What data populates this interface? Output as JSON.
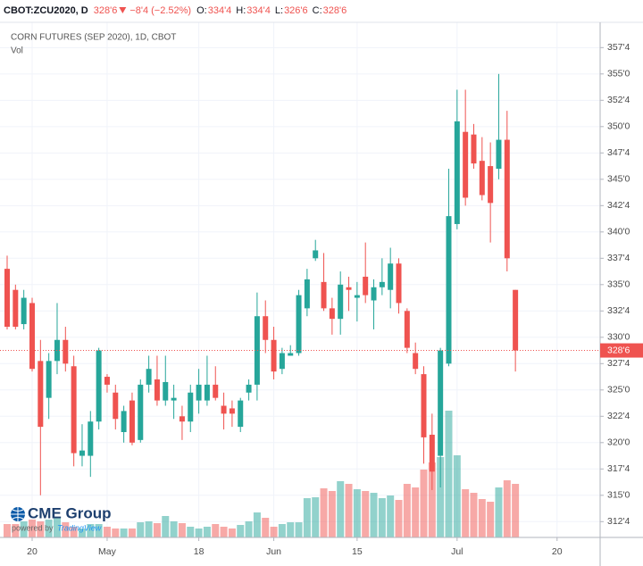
{
  "header": {
    "symbol": "CBOT:ZCU2020, D",
    "last": "328'6",
    "change": "−8'4 (−2.52%)",
    "ohlc": [
      {
        "label": "O:",
        "value": "334'4"
      },
      {
        "label": "H:",
        "value": "334'4"
      },
      {
        "label": "L:",
        "value": "326'6"
      },
      {
        "label": "C:",
        "value": "328'6"
      }
    ]
  },
  "branding": {
    "logo": "CME Group",
    "powered_by": "powered by",
    "platform": "TradingView"
  },
  "chart_data": {
    "type": "candlestick",
    "title": "CORN FUTURES (SEP 2020), 1D, CBOT",
    "volume_label": "Vol",
    "categories": [
      null,
      null,
      null,
      "20",
      null,
      null,
      null,
      null,
      null,
      null,
      null,
      null,
      "May",
      null,
      null,
      null,
      null,
      null,
      null,
      null,
      null,
      null,
      null,
      "18",
      null,
      null,
      null,
      null,
      null,
      null,
      null,
      null,
      "Jun",
      null,
      null,
      null,
      null,
      null,
      null,
      null,
      null,
      null,
      "15",
      null,
      null,
      null,
      null,
      null,
      null,
      null,
      null,
      null,
      null,
      null,
      "Jul",
      null,
      null,
      null,
      null,
      null,
      null,
      null,
      null,
      null,
      null,
      null,
      "20",
      null,
      null,
      null,
      null
    ],
    "open": [
      336.5,
      334.5,
      331.25,
      333.25,
      327.75,
      324.25,
      327.75,
      329.75,
      327.25,
      318.75,
      318.75,
      322,
      326.25,
      324.75,
      321,
      324,
      320.25,
      325.5,
      326,
      324,
      324,
      322.5,
      322,
      324,
      324,
      325.5,
      323.5,
      323.25,
      321.5,
      324.75,
      325.5,
      332,
      329.75,
      327,
      328.25,
      328.5,
      332.75,
      337.5,
      335.25,
      332.75,
      331.75,
      334.75,
      333.75,
      335.75,
      333.5,
      334.75,
      334.5,
      337,
      332.5,
      328.5,
      326.5,
      320.75,
      318.75,
      327.5,
      340.75,
      349.5,
      349.25,
      346.75,
      346.25,
      346,
      348.75,
      334.5,
      null,
      null,
      null,
      null,
      null,
      null,
      null,
      null,
      null
    ],
    "high": [
      337.75,
      335,
      334.5,
      333.75,
      329.75,
      328.5,
      333.25,
      331,
      328.25,
      321.75,
      323,
      329,
      326.5,
      325.5,
      323.5,
      324.75,
      326,
      328.25,
      328.25,
      328.25,
      325.5,
      323.5,
      325.5,
      327,
      328.25,
      327.25,
      324.75,
      324,
      324.25,
      326,
      334.25,
      333.5,
      331,
      329,
      329.25,
      334.5,
      336.5,
      339.25,
      338,
      333.75,
      336.25,
      335.75,
      335.25,
      339,
      335.5,
      337.5,
      338.5,
      337.5,
      332.75,
      329.5,
      327.25,
      322.75,
      329,
      346,
      353.5,
      353.5,
      350.25,
      349,
      348.5,
      355,
      351.5,
      334.5,
      null,
      null,
      null,
      null,
      null,
      null,
      null,
      null,
      null
    ],
    "low": [
      330.75,
      330.75,
      330.75,
      326.75,
      315,
      322.25,
      326.5,
      326.75,
      317.75,
      317.75,
      316.75,
      321.25,
      324.75,
      321.25,
      320,
      319.75,
      320,
      324.75,
      323.5,
      323.5,
      322.25,
      320.25,
      321,
      322.75,
      323.5,
      324,
      321.25,
      321.5,
      321,
      324,
      324,
      328.5,
      326,
      326.5,
      328.25,
      328.25,
      332,
      337.25,
      332.5,
      330.25,
      330.25,
      332.5,
      331.5,
      333.25,
      330.75,
      334,
      332.75,
      332.25,
      328.5,
      326.5,
      318,
      315.5,
      315.75,
      327.25,
      340.25,
      342.5,
      346,
      343,
      339,
      345,
      336.25,
      326.75,
      null,
      null,
      null,
      null,
      null,
      null,
      null,
      null,
      null
    ],
    "close": [
      331,
      331,
      333.75,
      327,
      321.5,
      327.75,
      329.75,
      327.5,
      319,
      319.25,
      322,
      328.75,
      325.5,
      322.25,
      323,
      320,
      325.5,
      327,
      324,
      325.75,
      324.25,
      322,
      324.75,
      325.5,
      325.5,
      324.25,
      322.75,
      322.75,
      324,
      325.5,
      332,
      329.75,
      326.75,
      328.5,
      328.5,
      334,
      335.5,
      338.25,
      332.75,
      331.75,
      335,
      334.5,
      334,
      334,
      334.75,
      335.25,
      337,
      333.25,
      329,
      327,
      320.5,
      317.25,
      328.75,
      341.5,
      350.5,
      343.25,
      346.5,
      343.5,
      342.75,
      348.75,
      337.5,
      328.75,
      null,
      null,
      null,
      null,
      null,
      null,
      null,
      null,
      null
    ],
    "volume": [
      15,
      15,
      18,
      20,
      18,
      20,
      22,
      17,
      12,
      10,
      15,
      15,
      12,
      10,
      10,
      10,
      17,
      18,
      16,
      24,
      18,
      16,
      12,
      10,
      12,
      15,
      12,
      10,
      14,
      18,
      28,
      22,
      12,
      15,
      17,
      17,
      44,
      45,
      55,
      52,
      63,
      60,
      54,
      52,
      50,
      44,
      47,
      42,
      60,
      56,
      76,
      84,
      90,
      142,
      92,
      54,
      50,
      43,
      40,
      56,
      64,
      60,
      null,
      null,
      null,
      null,
      null,
      null,
      null,
      null,
      null
    ],
    "ylim": [
      311.0,
      359.9
    ],
    "yticks": [
      {
        "value": 312.5,
        "label": "312'4"
      },
      {
        "value": 315,
        "label": "315'0"
      },
      {
        "value": 317.5,
        "label": "317'4"
      },
      {
        "value": 320,
        "label": "320'0"
      },
      {
        "value": 322.5,
        "label": "322'4"
      },
      {
        "value": 325,
        "label": "325'0"
      },
      {
        "value": 327.5,
        "label": "327'4"
      },
      {
        "value": 330,
        "label": "330'0"
      },
      {
        "value": 332.5,
        "label": "332'4"
      },
      {
        "value": 335,
        "label": "335'0"
      },
      {
        "value": 337.5,
        "label": "337'4"
      },
      {
        "value": 340,
        "label": "340'0"
      },
      {
        "value": 342.5,
        "label": "342'4"
      },
      {
        "value": 345,
        "label": "345'0"
      },
      {
        "value": 347.5,
        "label": "347'4"
      },
      {
        "value": 350,
        "label": "350'0"
      },
      {
        "value": 352.5,
        "label": "352'4"
      },
      {
        "value": 355,
        "label": "355'0"
      },
      {
        "value": 357.5,
        "label": "357'4"
      }
    ],
    "vlim": [
      0,
      300
    ],
    "last_price": {
      "value": 328.75,
      "label": "328'6"
    },
    "up_color": "#26a69a",
    "down_color": "#ef5350",
    "volume_up_color": "rgba(38,166,154,0.5)",
    "volume_down_color": "rgba(239,83,80,0.5)",
    "grid": true
  }
}
